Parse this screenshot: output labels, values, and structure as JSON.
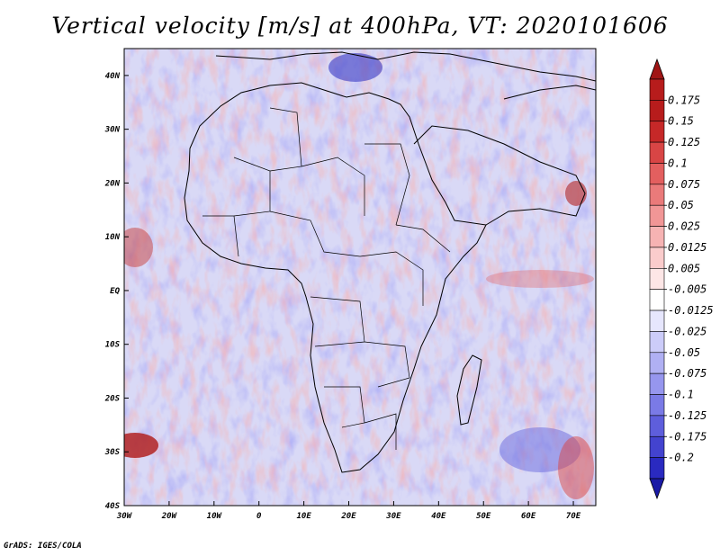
{
  "title": "Vertical velocity [m/s] at 400hPa, VT: 2020101606",
  "credit": "GrADS: IGES/COLA",
  "map": {
    "lon_range": [
      -30,
      75
    ],
    "lat_range": [
      -40,
      45
    ],
    "lon_ticks": [
      {
        "value": -30,
        "label": "30W"
      },
      {
        "value": -20,
        "label": "20W"
      },
      {
        "value": -10,
        "label": "10W"
      },
      {
        "value": 0,
        "label": "0"
      },
      {
        "value": 10,
        "label": "10E"
      },
      {
        "value": 20,
        "label": "20E"
      },
      {
        "value": 30,
        "label": "30E"
      },
      {
        "value": 40,
        "label": "40E"
      },
      {
        "value": 50,
        "label": "50E"
      },
      {
        "value": 60,
        "label": "60E"
      },
      {
        "value": 70,
        "label": "70E"
      }
    ],
    "lat_ticks": [
      {
        "value": 40,
        "label": "40N"
      },
      {
        "value": 30,
        "label": "30N"
      },
      {
        "value": 20,
        "label": "20N"
      },
      {
        "value": 10,
        "label": "10N"
      },
      {
        "value": 0,
        "label": "EQ"
      },
      {
        "value": -10,
        "label": "10S"
      },
      {
        "value": -20,
        "label": "20S"
      },
      {
        "value": -30,
        "label": "30S"
      },
      {
        "value": -40,
        "label": "40S"
      }
    ]
  },
  "colorbar": {
    "levels": [
      {
        "label": "0.175",
        "color": "#b71c1c"
      },
      {
        "label": "0.15",
        "color": "#c62828"
      },
      {
        "label": "0.125",
        "color": "#d84545"
      },
      {
        "label": "0.1",
        "color": "#e35f5f"
      },
      {
        "label": "0.075",
        "color": "#ea7a7a"
      },
      {
        "label": "0.05",
        "color": "#f19696"
      },
      {
        "label": "0.025",
        "color": "#f6b3b3"
      },
      {
        "label": "0.0125",
        "color": "#facccc"
      },
      {
        "label": "0.005",
        "color": "#fde6e6"
      },
      {
        "label": "-0.005",
        "color": "#ffffff"
      },
      {
        "label": "-0.0125",
        "color": "#e6e6fd"
      },
      {
        "label": "-0.025",
        "color": "#ccccf9"
      },
      {
        "label": "-0.05",
        "color": "#b0b0f3"
      },
      {
        "label": "-0.075",
        "color": "#9696ee"
      },
      {
        "label": "-0.1",
        "color": "#7a7ae6"
      },
      {
        "label": "-0.125",
        "color": "#5e5edc"
      },
      {
        "label": "-0.175",
        "color": "#4343cf"
      },
      {
        "label": "-0.2",
        "color": "#2a2ac0"
      }
    ],
    "top_color": "#a01515",
    "bottom_color": "#1a1aa6"
  }
}
